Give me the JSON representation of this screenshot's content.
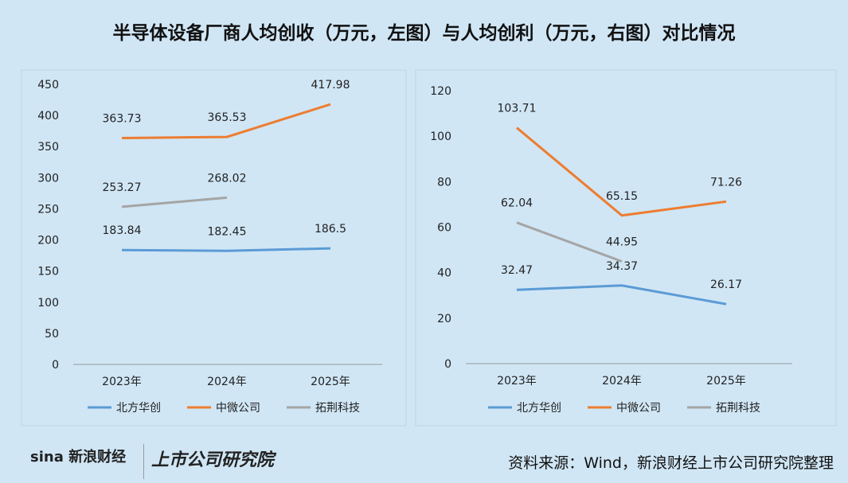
{
  "title": "半导体设备厂商人均创收（万元，左图）与人均创利（万元，右图）对比情况",
  "source": "资料来源：Wind，新浪财经上市公司研究院整理",
  "logos": {
    "sina": "sina新浪财经",
    "institute": "上市公司研究院"
  },
  "colors": {
    "北方华创": "#5b9bd5",
    "中微公司": "#ed7d31",
    "拓荆科技": "#a5a5a5"
  },
  "chart_data": [
    {
      "type": "line",
      "categories": [
        "2023年",
        "2024年",
        "2025年"
      ],
      "ylim": [
        0,
        450
      ],
      "yticks": [
        0,
        50,
        100,
        150,
        200,
        250,
        300,
        350,
        400,
        450
      ],
      "legend": "bottom",
      "grid": false,
      "series": [
        {
          "name": "北方华创",
          "values": [
            183.84,
            182.45,
            186.5
          ]
        },
        {
          "name": "中微公司",
          "values": [
            363.73,
            365.53,
            417.98
          ]
        },
        {
          "name": "拓荆科技",
          "values": [
            253.27,
            268.02,
            null
          ]
        }
      ]
    },
    {
      "type": "line",
      "categories": [
        "2023年",
        "2024年",
        "2025年"
      ],
      "ylim": [
        0,
        120
      ],
      "yticks": [
        0,
        20,
        40,
        60,
        80,
        100,
        120
      ],
      "legend": "bottom",
      "grid": false,
      "series": [
        {
          "name": "北方华创",
          "values": [
            32.47,
            34.37,
            26.17
          ]
        },
        {
          "name": "中微公司",
          "values": [
            103.71,
            65.15,
            71.26
          ]
        },
        {
          "name": "拓荆科技",
          "values": [
            62.04,
            44.95,
            null
          ]
        }
      ]
    }
  ]
}
